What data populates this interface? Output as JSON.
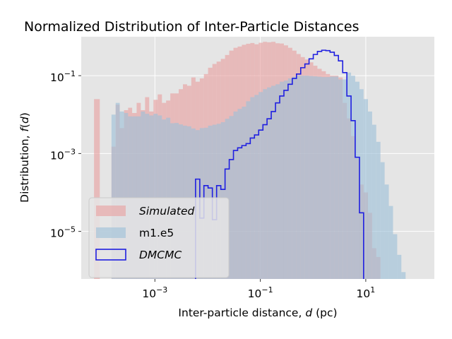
{
  "chart_data": {
    "type": "histogram",
    "title": "Normalized Distribution of Inter-Particle Distances",
    "xlabel": {
      "prefix": "Inter-particle distance, ",
      "var": "d",
      "suffix": " (pc)"
    },
    "ylabel": {
      "prefix": "Distribution, ",
      "var": "f",
      "open": "(",
      "arg": "d",
      "close": ")"
    },
    "xscale": "log",
    "yscale": "log",
    "xlim": [
      4e-05,
      200
    ],
    "ylim": [
      6e-07,
      1
    ],
    "grid": true,
    "legend_position": "lower left",
    "xticks": [
      {
        "value": 0.001,
        "base": "10",
        "exp": "−3"
      },
      {
        "value": 0.1,
        "base": "10",
        "exp": "−1"
      },
      {
        "value": 10,
        "base": "10",
        "exp": "1"
      }
    ],
    "yticks": [
      {
        "value": 0.1,
        "base": "10",
        "exp": "−1"
      },
      {
        "value": 0.001,
        "base": "10",
        "exp": "−3"
      },
      {
        "value": 1e-05,
        "base": "10",
        "exp": "−5"
      }
    ],
    "series": [
      {
        "name": "Simulated",
        "italic": true,
        "style": "filled",
        "color": "#e8a0a0",
        "bins": [
          [
            7e-05,
            9e-05,
            0.025
          ],
          [
            0.00015,
            0.00018,
            0.0015
          ],
          [
            0.00018,
            0.000215,
            0.018
          ],
          [
            0.000215,
            0.00026,
            0.0045
          ],
          [
            0.00026,
            0.00031,
            0.013
          ],
          [
            0.00031,
            0.00037,
            0.015
          ],
          [
            0.00037,
            0.00045,
            0.011
          ],
          [
            0.00045,
            0.00054,
            0.02
          ],
          [
            0.00054,
            0.00065,
            0.013
          ],
          [
            0.00065,
            0.00078,
            0.028
          ],
          [
            0.00078,
            0.00094,
            0.012
          ],
          [
            0.00094,
            0.00113,
            0.024
          ],
          [
            0.00113,
            0.00136,
            0.033
          ],
          [
            0.00136,
            0.00163,
            0.02
          ],
          [
            0.00163,
            0.00196,
            0.023
          ],
          [
            0.00196,
            0.00235,
            0.035
          ],
          [
            0.00235,
            0.00283,
            0.035
          ],
          [
            0.00283,
            0.0034,
            0.045
          ],
          [
            0.0034,
            0.00408,
            0.06
          ],
          [
            0.00408,
            0.0049,
            0.055
          ],
          [
            0.0049,
            0.0059,
            0.09
          ],
          [
            0.0059,
            0.0071,
            0.07
          ],
          [
            0.0071,
            0.0085,
            0.085
          ],
          [
            0.0085,
            0.0102,
            0.11
          ],
          [
            0.0102,
            0.0123,
            0.16
          ],
          [
            0.0123,
            0.0148,
            0.2
          ],
          [
            0.0148,
            0.0178,
            0.23
          ],
          [
            0.0178,
            0.0214,
            0.27
          ],
          [
            0.0214,
            0.0257,
            0.34
          ],
          [
            0.0257,
            0.0309,
            0.44
          ],
          [
            0.0309,
            0.0371,
            0.52
          ],
          [
            0.0371,
            0.0446,
            0.56
          ],
          [
            0.0446,
            0.0536,
            0.62
          ],
          [
            0.0536,
            0.0644,
            0.66
          ],
          [
            0.0644,
            0.0774,
            0.69
          ],
          [
            0.0774,
            0.093,
            0.64
          ],
          [
            0.093,
            0.112,
            0.7
          ],
          [
            0.112,
            0.134,
            0.74
          ],
          [
            0.134,
            0.161,
            0.72
          ],
          [
            0.161,
            0.194,
            0.74
          ],
          [
            0.194,
            0.233,
            0.68
          ],
          [
            0.233,
            0.28,
            0.67
          ],
          [
            0.28,
            0.336,
            0.6
          ],
          [
            0.336,
            0.404,
            0.52
          ],
          [
            0.404,
            0.485,
            0.44
          ],
          [
            0.485,
            0.583,
            0.36
          ],
          [
            0.583,
            0.7,
            0.3
          ],
          [
            0.7,
            0.84,
            0.26
          ],
          [
            0.84,
            1.01,
            0.22
          ],
          [
            1.01,
            1.21,
            0.18
          ],
          [
            1.21,
            1.46,
            0.15
          ],
          [
            1.46,
            1.75,
            0.13
          ],
          [
            1.75,
            2.1,
            0.11
          ],
          [
            2.1,
            2.53,
            0.1
          ],
          [
            2.53,
            3.03,
            0.1
          ],
          [
            3.03,
            3.65,
            0.09
          ],
          [
            3.65,
            4.38,
            0.02
          ],
          [
            4.38,
            5.26,
            0.008
          ],
          [
            5.26,
            6.3,
            0.0028
          ],
          [
            6.3,
            7.6,
            0.00075
          ],
          [
            7.6,
            9.1,
            0.00016
          ],
          [
            9.1,
            11,
            0.0001
          ],
          [
            11,
            13.2,
            3e-05
          ],
          [
            13.2,
            15.8,
            3.7e-06
          ],
          [
            15.8,
            19,
            2.2e-06
          ]
        ]
      },
      {
        "name": "m1.e5",
        "italic": false,
        "style": "filled",
        "color": "#9cc0d8",
        "bins": [
          [
            0.00015,
            0.00018,
            0.01
          ],
          [
            0.00018,
            0.000215,
            0.02
          ],
          [
            0.000215,
            0.00026,
            0.012
          ],
          [
            0.00026,
            0.00031,
            0.011
          ],
          [
            0.00031,
            0.00037,
            0.009
          ],
          [
            0.00037,
            0.00045,
            0.009
          ],
          [
            0.00045,
            0.00054,
            0.009
          ],
          [
            0.00054,
            0.00065,
            0.012
          ],
          [
            0.00065,
            0.00078,
            0.0105
          ],
          [
            0.00078,
            0.00094,
            0.0095
          ],
          [
            0.00094,
            0.00113,
            0.0105
          ],
          [
            0.00113,
            0.00136,
            0.0095
          ],
          [
            0.00136,
            0.00163,
            0.0075
          ],
          [
            0.00163,
            0.00196,
            0.0083
          ],
          [
            0.00196,
            0.00235,
            0.006
          ],
          [
            0.00235,
            0.00283,
            0.0061
          ],
          [
            0.00283,
            0.0034,
            0.0056
          ],
          [
            0.0034,
            0.00408,
            0.0052
          ],
          [
            0.00408,
            0.0049,
            0.005
          ],
          [
            0.0049,
            0.0059,
            0.0044
          ],
          [
            0.0059,
            0.0071,
            0.004
          ],
          [
            0.0071,
            0.0085,
            0.0045
          ],
          [
            0.0085,
            0.0102,
            0.0046
          ],
          [
            0.0102,
            0.0123,
            0.0052
          ],
          [
            0.0123,
            0.0148,
            0.0055
          ],
          [
            0.0148,
            0.0178,
            0.0058
          ],
          [
            0.0178,
            0.0214,
            0.0064
          ],
          [
            0.0214,
            0.0257,
            0.0078
          ],
          [
            0.0257,
            0.0309,
            0.0092
          ],
          [
            0.0309,
            0.0371,
            0.012
          ],
          [
            0.0371,
            0.0446,
            0.014
          ],
          [
            0.0446,
            0.0536,
            0.016
          ],
          [
            0.0536,
            0.0644,
            0.022
          ],
          [
            0.0644,
            0.0774,
            0.028
          ],
          [
            0.0774,
            0.093,
            0.032
          ],
          [
            0.093,
            0.112,
            0.038
          ],
          [
            0.112,
            0.134,
            0.045
          ],
          [
            0.134,
            0.161,
            0.05
          ],
          [
            0.161,
            0.194,
            0.055
          ],
          [
            0.194,
            0.233,
            0.06
          ],
          [
            0.233,
            0.28,
            0.07
          ],
          [
            0.28,
            0.336,
            0.075
          ],
          [
            0.336,
            0.404,
            0.085
          ],
          [
            0.404,
            0.485,
            0.095
          ],
          [
            0.485,
            0.583,
            0.1
          ],
          [
            0.583,
            0.7,
            0.1
          ],
          [
            0.7,
            0.84,
            0.1
          ],
          [
            0.84,
            1.01,
            0.098
          ],
          [
            1.01,
            1.21,
            0.096
          ],
          [
            1.21,
            1.46,
            0.094
          ],
          [
            1.46,
            1.75,
            0.092
          ],
          [
            1.75,
            2.1,
            0.092
          ],
          [
            2.1,
            2.53,
            0.095
          ],
          [
            2.53,
            3.03,
            0.095
          ],
          [
            3.03,
            3.65,
            0.08
          ],
          [
            3.65,
            4.38,
            0.08
          ],
          [
            4.38,
            5.26,
            0.12
          ],
          [
            5.26,
            6.3,
            0.1
          ],
          [
            6.3,
            7.6,
            0.07
          ],
          [
            7.6,
            9.1,
            0.045
          ],
          [
            9.1,
            11,
            0.025
          ],
          [
            11,
            13.2,
            0.012
          ],
          [
            13.2,
            15.8,
            0.0055
          ],
          [
            15.8,
            19,
            0.002
          ],
          [
            19,
            22.8,
            0.0006
          ],
          [
            22.8,
            27.4,
            0.00016
          ],
          [
            27.4,
            32.9,
            4.5e-05
          ],
          [
            32.9,
            39.5,
            8.5e-06
          ],
          [
            39.5,
            47.4,
            2.5e-06
          ],
          [
            47.4,
            57,
            9e-07
          ]
        ]
      },
      {
        "name": "DMCMC",
        "italic": true,
        "style": "step",
        "color": "#1f1fe0",
        "bins": [
          [
            0.0059,
            0.0071,
            0.00022
          ],
          [
            0.0071,
            0.0085,
            2.2e-05
          ],
          [
            0.0085,
            0.0102,
            0.00015
          ],
          [
            0.0102,
            0.0123,
            0.00013
          ],
          [
            0.0123,
            0.0148,
            2e-05
          ],
          [
            0.0148,
            0.0178,
            0.00015
          ],
          [
            0.0178,
            0.0214,
            0.00012
          ],
          [
            0.0214,
            0.0257,
            0.0004
          ],
          [
            0.0257,
            0.0309,
            0.0007
          ],
          [
            0.0309,
            0.0371,
            0.0012
          ],
          [
            0.0371,
            0.0446,
            0.0014
          ],
          [
            0.0446,
            0.0536,
            0.0016
          ],
          [
            0.0536,
            0.0644,
            0.0018
          ],
          [
            0.0644,
            0.0774,
            0.0025
          ],
          [
            0.0774,
            0.093,
            0.003
          ],
          [
            0.093,
            0.112,
            0.004
          ],
          [
            0.112,
            0.134,
            0.0055
          ],
          [
            0.134,
            0.161,
            0.0078
          ],
          [
            0.161,
            0.194,
            0.012
          ],
          [
            0.194,
            0.233,
            0.02
          ],
          [
            0.233,
            0.28,
            0.03
          ],
          [
            0.28,
            0.336,
            0.042
          ],
          [
            0.336,
            0.404,
            0.06
          ],
          [
            0.404,
            0.485,
            0.085
          ],
          [
            0.485,
            0.583,
            0.11
          ],
          [
            0.583,
            0.7,
            0.16
          ],
          [
            0.7,
            0.84,
            0.2
          ],
          [
            0.84,
            1.01,
            0.27
          ],
          [
            1.01,
            1.21,
            0.35
          ],
          [
            1.21,
            1.46,
            0.42
          ],
          [
            1.46,
            1.75,
            0.45
          ],
          [
            1.75,
            2.1,
            0.44
          ],
          [
            2.1,
            2.53,
            0.4
          ],
          [
            2.53,
            3.03,
            0.33
          ],
          [
            3.03,
            3.65,
            0.24
          ],
          [
            3.65,
            4.38,
            0.12
          ],
          [
            4.38,
            5.26,
            0.03
          ],
          [
            5.26,
            6.3,
            0.007
          ],
          [
            6.3,
            7.6,
            0.0008
          ],
          [
            7.6,
            9.1,
            3e-05
          ]
        ]
      }
    ]
  }
}
